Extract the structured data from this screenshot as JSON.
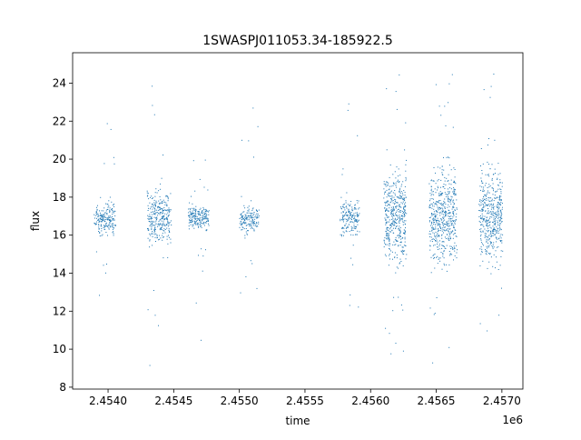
{
  "chart_data": {
    "type": "scatter",
    "title": "1SWASPJ011053.34-185922.5",
    "xlabel": "time",
    "ylabel": "flux",
    "x_offset_label": "1e6",
    "xlim": [
      2.45373,
      2.45716
    ],
    "ylim": [
      7.9,
      25.6
    ],
    "x_ticks": [
      2.454,
      2.4545,
      2.455,
      2.4555,
      2.456,
      2.4565,
      2.457
    ],
    "x_tick_labels": [
      "2.4540",
      "2.4545",
      "2.4550",
      "2.4555",
      "2.4560",
      "2.4565",
      "2.4570"
    ],
    "y_ticks": [
      8,
      10,
      12,
      14,
      16,
      18,
      20,
      22,
      24
    ],
    "y_tick_labels": [
      "8",
      "10",
      "12",
      "14",
      "16",
      "18",
      "20",
      "22",
      "24"
    ],
    "grid": false,
    "marker_color": "#1f77b4",
    "series": [
      {
        "clusters": [
          {
            "x_range": [
              2.4539,
              2.45405
            ],
            "center": 16.8,
            "core_lo": 15.7,
            "core_hi": 18.0,
            "min": 8.8,
            "max": 23.5,
            "density": 9
          },
          {
            "x_range": [
              2.4543,
              2.45447
            ],
            "center": 16.9,
            "core_lo": 15.0,
            "core_hi": 19.0,
            "min": 8.7,
            "max": 24.5,
            "density": 12
          },
          {
            "x_range": [
              2.45461,
              2.45476
            ],
            "center": 16.8,
            "core_lo": 16.0,
            "core_hi": 17.9,
            "min": 9.6,
            "max": 20.3,
            "density": 9
          },
          {
            "x_range": [
              2.455,
              2.45514
            ],
            "center": 16.7,
            "core_lo": 15.9,
            "core_hi": 17.8,
            "min": 10.2,
            "max": 22.8,
            "density": 8
          },
          {
            "x_range": [
              2.45577,
              2.45591
            ],
            "center": 16.8,
            "core_lo": 15.6,
            "core_hi": 18.2,
            "min": 10.7,
            "max": 23.9,
            "density": 9
          },
          {
            "x_range": [
              2.4561,
              2.45627
            ],
            "center": 16.7,
            "core_lo": 13.5,
            "core_hi": 20.5,
            "min": 8.7,
            "max": 24.8,
            "density": 18
          },
          {
            "x_range": [
              2.45645,
              2.45665
            ],
            "center": 16.8,
            "core_lo": 13.5,
            "core_hi": 20.5,
            "min": 8.7,
            "max": 24.8,
            "density": 18
          },
          {
            "x_range": [
              2.45683,
              2.457
            ],
            "center": 16.9,
            "core_lo": 13.5,
            "core_hi": 20.5,
            "min": 8.7,
            "max": 24.8,
            "density": 18
          }
        ]
      }
    ]
  }
}
